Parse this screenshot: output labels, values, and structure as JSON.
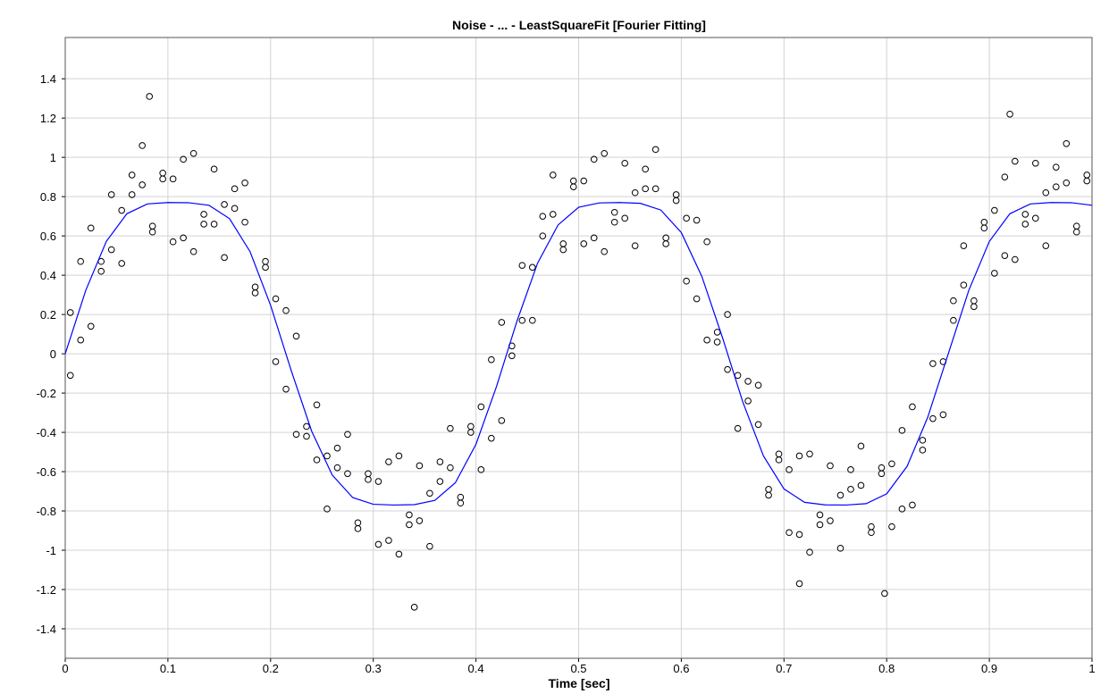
{
  "chart_data": {
    "type": "scatter-fit",
    "title": "Noise - ... - LeastSquareFit [Fourier Fitting]",
    "x_label": "Time [sec]",
    "xlim": [
      0,
      1
    ],
    "ylim": [
      -1.55,
      1.61
    ],
    "xticks": [
      0,
      0.1,
      0.2,
      0.3,
      0.4,
      0.5,
      0.6,
      0.7,
      0.8,
      0.9,
      1
    ],
    "yticks": [
      -1.4,
      -1.2,
      -1,
      -0.8,
      -0.6,
      -0.4,
      -0.2,
      0,
      0.2,
      0.4,
      0.6,
      0.8,
      1,
      1.2,
      1.4
    ],
    "grid": true,
    "series": [
      {
        "kind": "scatter",
        "color": "#000000",
        "x": [
          0.005,
          0.005,
          0.015,
          0.015,
          0.025,
          0.025,
          0.035,
          0.035,
          0.045,
          0.045,
          0.055,
          0.055,
          0.065,
          0.065,
          0.075,
          0.075,
          0.085,
          0.085,
          0.095,
          0.095,
          0.105,
          0.105,
          0.115,
          0.115,
          0.125,
          0.125,
          0.135,
          0.135,
          0.145,
          0.145,
          0.155,
          0.155,
          0.165,
          0.165,
          0.175,
          0.175,
          0.185,
          0.185,
          0.195,
          0.195,
          0.205,
          0.205,
          0.215,
          0.215,
          0.225,
          0.225,
          0.235,
          0.235,
          0.245,
          0.245,
          0.255,
          0.255,
          0.265,
          0.265,
          0.275,
          0.275,
          0.285,
          0.285,
          0.295,
          0.295,
          0.305,
          0.305,
          0.315,
          0.315,
          0.325,
          0.325,
          0.335,
          0.335,
          0.345,
          0.345,
          0.355,
          0.355,
          0.365,
          0.365,
          0.375,
          0.375,
          0.385,
          0.385,
          0.395,
          0.395,
          0.405,
          0.405,
          0.415,
          0.415,
          0.425,
          0.425,
          0.435,
          0.435,
          0.445,
          0.445,
          0.455,
          0.455,
          0.465,
          0.465,
          0.475,
          0.475,
          0.485,
          0.485,
          0.495,
          0.495,
          0.505,
          0.505,
          0.515,
          0.515,
          0.525,
          0.525,
          0.535,
          0.535,
          0.545,
          0.545,
          0.555,
          0.555,
          0.565,
          0.565,
          0.575,
          0.575,
          0.585,
          0.585,
          0.595,
          0.595,
          0.605,
          0.605,
          0.615,
          0.615,
          0.625,
          0.625,
          0.635,
          0.635,
          0.645,
          0.645,
          0.655,
          0.655,
          0.665,
          0.665,
          0.675,
          0.675,
          0.685,
          0.685,
          0.695,
          0.695,
          0.705,
          0.705,
          0.715,
          0.715,
          0.725,
          0.725,
          0.735,
          0.735,
          0.745,
          0.745,
          0.755,
          0.755,
          0.765,
          0.765,
          0.775,
          0.775,
          0.785,
          0.785,
          0.795,
          0.795,
          0.805,
          0.805,
          0.815,
          0.815,
          0.825,
          0.825,
          0.835,
          0.835,
          0.845,
          0.845,
          0.855,
          0.855,
          0.865,
          0.865,
          0.875,
          0.875,
          0.885,
          0.885,
          0.895,
          0.895,
          0.905,
          0.905,
          0.915,
          0.915,
          0.925,
          0.925,
          0.935,
          0.935,
          0.945,
          0.945,
          0.955,
          0.955,
          0.965,
          0.965,
          0.975,
          0.975,
          0.985,
          0.985,
          0.995,
          0.995,
          0.082,
          0.34,
          0.92,
          0.715,
          0.798
        ],
        "values": [
          0.21,
          -0.11,
          0.07,
          0.47,
          0.64,
          0.14,
          0.47,
          0.42,
          0.81,
          0.53,
          0.46,
          0.73,
          0.81,
          0.91,
          1.06,
          0.86,
          0.65,
          0.62,
          0.92,
          0.89,
          0.89,
          0.57,
          0.59,
          0.99,
          1.02,
          0.52,
          0.71,
          0.66,
          0.94,
          0.66,
          0.49,
          0.76,
          0.74,
          0.84,
          0.87,
          0.67,
          0.34,
          0.31,
          0.47,
          0.44,
          0.28,
          -0.04,
          -0.18,
          0.22,
          0.09,
          -0.41,
          -0.37,
          -0.42,
          -0.26,
          -0.54,
          -0.79,
          -0.52,
          -0.58,
          -0.48,
          -0.41,
          -0.61,
          -0.86,
          -0.89,
          -0.61,
          -0.64,
          -0.65,
          -0.97,
          -0.95,
          -0.55,
          -0.52,
          -1.02,
          -0.82,
          -0.87,
          -0.57,
          -0.85,
          -0.98,
          -0.71,
          -0.65,
          -0.55,
          -0.38,
          -0.58,
          -0.73,
          -0.76,
          -0.37,
          -0.4,
          -0.27,
          -0.59,
          -0.43,
          -0.03,
          0.16,
          -0.34,
          0.04,
          -0.01,
          0.45,
          0.17,
          0.17,
          0.44,
          0.6,
          0.7,
          0.91,
          0.71,
          0.56,
          0.53,
          0.88,
          0.85,
          0.88,
          0.56,
          0.59,
          0.99,
          1.02,
          0.52,
          0.72,
          0.67,
          0.97,
          0.69,
          0.55,
          0.82,
          0.84,
          0.94,
          1.04,
          0.84,
          0.59,
          0.56,
          0.81,
          0.78,
          0.69,
          0.37,
          0.28,
          0.68,
          0.57,
          0.07,
          0.11,
          0.06,
          0.2,
          -0.08,
          -0.38,
          -0.11,
          -0.24,
          -0.14,
          -0.16,
          -0.36,
          -0.69,
          -0.72,
          -0.51,
          -0.54,
          -0.59,
          -0.91,
          -0.92,
          -0.52,
          -0.51,
          -1.01,
          -0.82,
          -0.87,
          -0.57,
          -0.85,
          -0.99,
          -0.72,
          -0.69,
          -0.59,
          -0.47,
          -0.67,
          -0.88,
          -0.91,
          -0.58,
          -0.61,
          -0.56,
          -0.88,
          -0.79,
          -0.39,
          -0.27,
          -0.77,
          -0.44,
          -0.49,
          -0.05,
          -0.33,
          -0.31,
          -0.04,
          0.17,
          0.27,
          0.55,
          0.35,
          0.27,
          0.24,
          0.67,
          0.64,
          0.73,
          0.41,
          0.5,
          0.9,
          0.98,
          0.48,
          0.71,
          0.66,
          0.97,
          0.69,
          0.55,
          0.82,
          0.85,
          0.95,
          1.07,
          0.87,
          0.65,
          0.62,
          0.91,
          0.88,
          1.31,
          -1.29,
          1.22,
          -1.17,
          -1.22
        ]
      },
      {
        "kind": "line",
        "color": "#0000ff",
        "x": [
          0,
          0.02,
          0.04,
          0.06,
          0.08,
          0.1,
          0.12,
          0.14,
          0.16,
          0.18,
          0.2,
          0.22,
          0.24,
          0.26,
          0.28,
          0.3,
          0.32,
          0.34,
          0.36,
          0.38,
          0.4,
          0.42,
          0.44,
          0.46,
          0.48,
          0.5,
          0.52,
          0.54,
          0.56,
          0.58,
          0.6,
          0.62,
          0.64,
          0.66,
          0.68,
          0.7,
          0.72,
          0.74,
          0.76,
          0.78,
          0.8,
          0.82,
          0.84,
          0.86,
          0.88,
          0.9,
          0.92,
          0.94,
          0.96,
          0.98,
          1
        ],
        "values": [
          0,
          0.323,
          0.572,
          0.713,
          0.763,
          0.77,
          0.769,
          0.756,
          0.688,
          0.52,
          0.247,
          -0.084,
          -0.394,
          -0.617,
          -0.732,
          -0.766,
          -0.77,
          -0.768,
          -0.746,
          -0.656,
          -0.461,
          -0.167,
          0.167,
          0.461,
          0.656,
          0.746,
          0.768,
          0.77,
          0.766,
          0.732,
          0.617,
          0.394,
          0.084,
          -0.247,
          -0.52,
          -0.688,
          -0.756,
          -0.769,
          -0.77,
          -0.763,
          -0.713,
          -0.572,
          -0.323,
          0,
          0.323,
          0.572,
          0.713,
          0.763,
          0.77,
          0.769,
          0.756
        ]
      }
    ]
  }
}
